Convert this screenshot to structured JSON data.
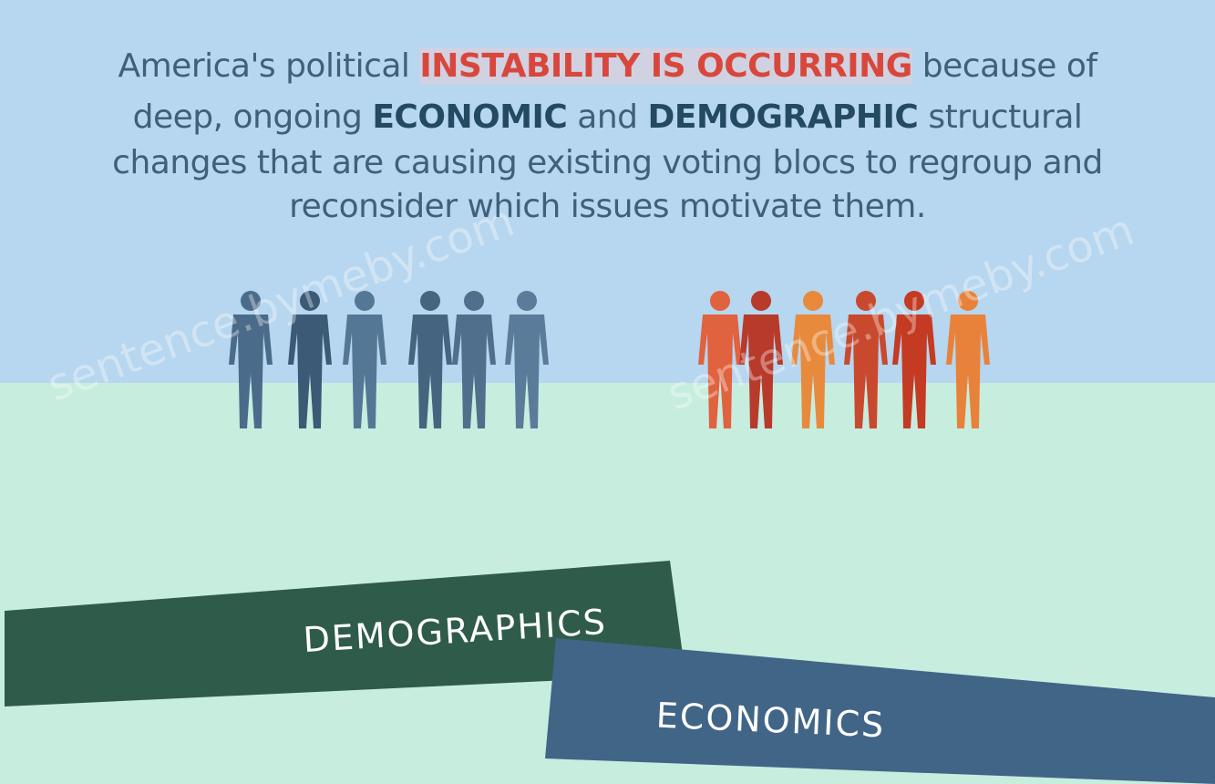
{
  "headline": {
    "lines": [
      [
        "America's political",
        "INSTABILITY IS OCCURRING",
        "because of"
      ],
      [
        "deep, ongoing",
        "ECONOMIC",
        "and",
        "DEMOGRAPHIC",
        "structural"
      ],
      [
        "changes that are causing existing voting blocs to regroup and"
      ],
      [
        "reconsider which issues motivate them."
      ]
    ]
  },
  "banners": {
    "demographics": "DEMOGRAPHICS",
    "economics": "ECONOMICS"
  },
  "watermark": "sentence.bymeby.com"
}
